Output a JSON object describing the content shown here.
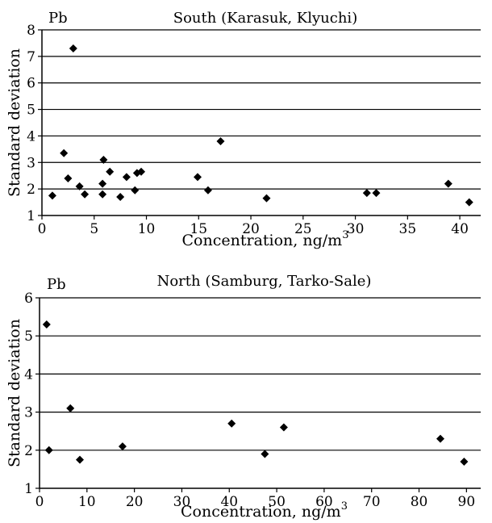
{
  "chart_data": [
    {
      "type": "scatter",
      "element_label": "Pb",
      "title": "South (Karasuk, Klyuchi)",
      "xlabel": "Concentration, ng/m",
      "xlabel_sup": "3",
      "ylabel": "Standard deviation",
      "xlim": [
        0,
        42
      ],
      "ylim": [
        1,
        8
      ],
      "x_ticks": [
        0,
        5,
        10,
        15,
        20,
        25,
        30,
        35,
        40
      ],
      "y_ticks": [
        1,
        2,
        3,
        4,
        5,
        6,
        7,
        8
      ],
      "grid": "horizontal",
      "points": [
        {
          "x": 1.0,
          "y": 1.75
        },
        {
          "x": 2.1,
          "y": 3.35
        },
        {
          "x": 2.5,
          "y": 2.4
        },
        {
          "x": 3.0,
          "y": 7.3
        },
        {
          "x": 3.6,
          "y": 2.1
        },
        {
          "x": 4.1,
          "y": 1.8
        },
        {
          "x": 5.8,
          "y": 1.8
        },
        {
          "x": 5.8,
          "y": 2.2
        },
        {
          "x": 5.9,
          "y": 3.1
        },
        {
          "x": 6.5,
          "y": 2.65
        },
        {
          "x": 7.5,
          "y": 1.7
        },
        {
          "x": 8.1,
          "y": 2.45
        },
        {
          "x": 8.9,
          "y": 1.95
        },
        {
          "x": 9.1,
          "y": 2.6
        },
        {
          "x": 9.5,
          "y": 2.65
        },
        {
          "x": 14.9,
          "y": 2.45
        },
        {
          "x": 15.9,
          "y": 1.95
        },
        {
          "x": 17.1,
          "y": 3.8
        },
        {
          "x": 21.5,
          "y": 1.65
        },
        {
          "x": 31.1,
          "y": 1.85
        },
        {
          "x": 32.0,
          "y": 1.85
        },
        {
          "x": 38.9,
          "y": 2.2
        },
        {
          "x": 40.9,
          "y": 1.5
        }
      ]
    },
    {
      "type": "scatter",
      "element_label": "Pb",
      "title": "North (Samburg, Tarko-Sale)",
      "xlabel": "Concentration, ng/m",
      "xlabel_sup": "3",
      "ylabel": "Standard deviation",
      "xlim": [
        0,
        93
      ],
      "ylim": [
        1,
        6
      ],
      "x_ticks": [
        0,
        10,
        20,
        30,
        40,
        50,
        60,
        70,
        80,
        90
      ],
      "y_ticks": [
        1,
        2,
        3,
        4,
        5,
        6
      ],
      "grid": "horizontal",
      "points": [
        {
          "x": 1.5,
          "y": 5.3
        },
        {
          "x": 2.0,
          "y": 2.0
        },
        {
          "x": 6.5,
          "y": 3.1
        },
        {
          "x": 8.5,
          "y": 1.75
        },
        {
          "x": 17.5,
          "y": 2.1
        },
        {
          "x": 40.5,
          "y": 2.7
        },
        {
          "x": 47.5,
          "y": 1.9
        },
        {
          "x": 51.5,
          "y": 2.6
        },
        {
          "x": 84.5,
          "y": 2.3
        },
        {
          "x": 89.5,
          "y": 1.7
        }
      ]
    }
  ]
}
